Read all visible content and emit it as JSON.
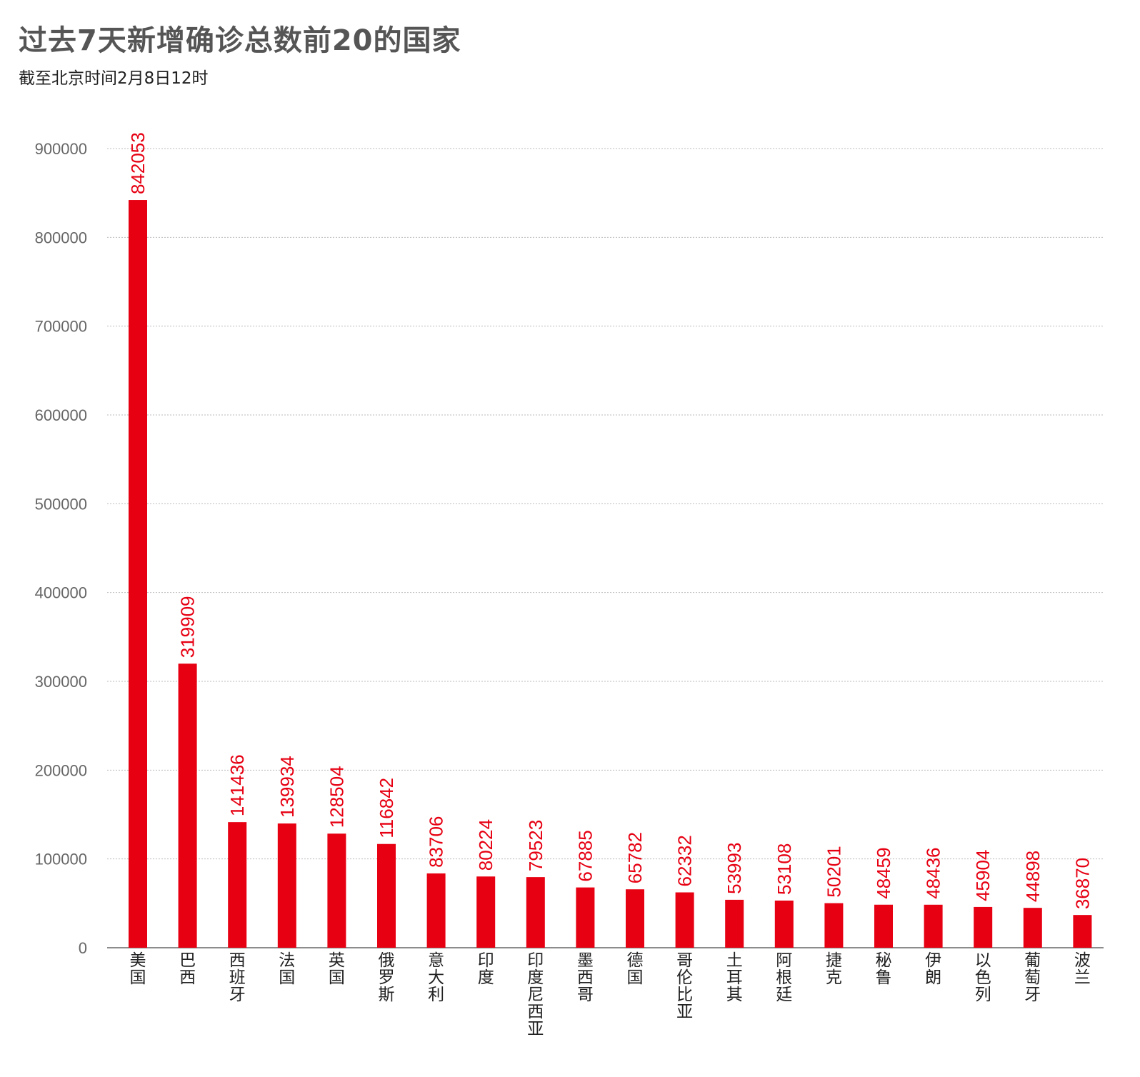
{
  "header": {
    "title": "过去7天新增确诊总数前20的国家",
    "subtitle": "截至北京时间2月8日12时"
  },
  "colors": {
    "bar": "#e60012",
    "grid": "#bbbbbb",
    "axis": "#666666"
  },
  "chart_data": {
    "type": "bar",
    "title": "过去7天新增确诊总数前20的国家",
    "subtitle": "截至北京时间2月8日12时",
    "xlabel": "",
    "ylabel": "",
    "ylim": [
      0,
      900000
    ],
    "yticks": [
      0,
      100000,
      200000,
      300000,
      400000,
      500000,
      600000,
      700000,
      800000,
      900000
    ],
    "grid": true,
    "categories": [
      "美国",
      "巴西",
      "西班牙",
      "法国",
      "英国",
      "俄罗斯",
      "意大利",
      "印度",
      "印度尼西亚",
      "墨西哥",
      "德国",
      "哥伦比亚",
      "土耳其",
      "阿根廷",
      "捷克",
      "秘鲁",
      "伊朗",
      "以色列",
      "葡萄牙",
      "波兰"
    ],
    "values": [
      842053,
      319909,
      141436,
      139934,
      128504,
      116842,
      83706,
      80224,
      79523,
      67885,
      65782,
      62332,
      53993,
      53108,
      50201,
      48459,
      48436,
      45904,
      44898,
      36870
    ],
    "bar_labels": [
      "842053",
      "319909",
      "141436",
      "139934",
      "128504",
      "116842",
      "83706",
      "80224",
      "79523",
      "67885",
      "65782",
      "62332",
      "53993",
      "53108",
      "50201",
      "48459",
      "48436",
      "45904",
      "44898",
      "36870"
    ],
    "tick_labels": [
      "0",
      "100000",
      "200000",
      "300000",
      "400000",
      "500000",
      "600000",
      "700000",
      "800000",
      "900000"
    ]
  }
}
